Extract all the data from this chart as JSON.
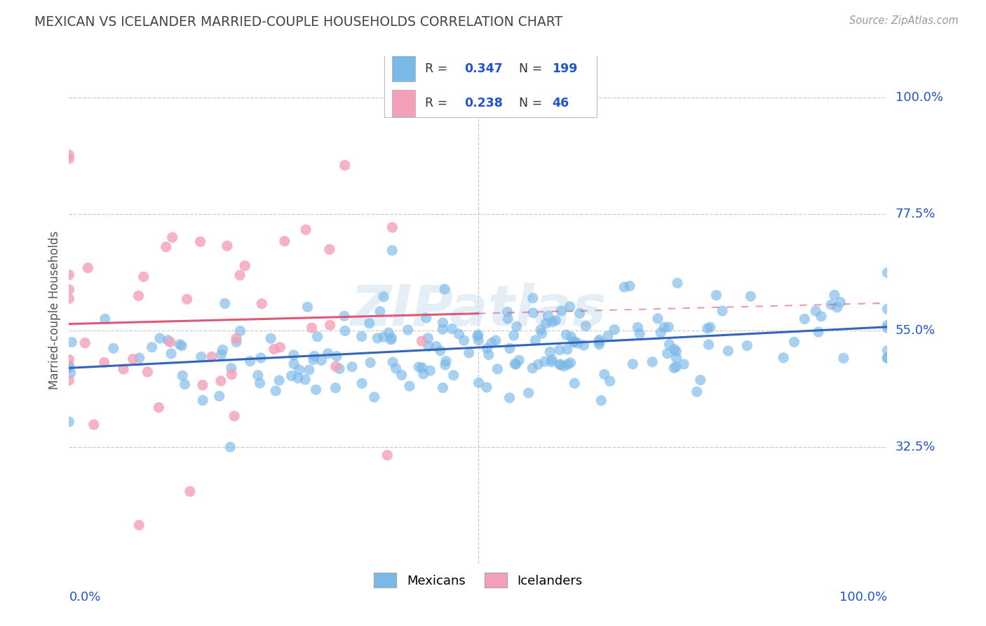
{
  "title": "MEXICAN VS ICELANDER MARRIED-COUPLE HOUSEHOLDS CORRELATION CHART",
  "source": "Source: ZipAtlas.com",
  "ylabel": "Married-couple Households",
  "watermark": "ZIPatlas",
  "ytick_labels": [
    "32.5%",
    "55.0%",
    "77.5%",
    "100.0%"
  ],
  "ytick_values": [
    0.325,
    0.55,
    0.775,
    1.0
  ],
  "mexican_color": "#7ab8e8",
  "icelander_color": "#f4a0b8",
  "mexican_line_color": "#3366bb",
  "icelander_line_color": "#e05878",
  "legend_R_mexican": "0.347",
  "legend_N_mexican": "199",
  "legend_R_icelander": "0.238",
  "legend_N_icelander": "46",
  "N_mexican": 199,
  "N_icelander": 46,
  "R_mexican": 0.347,
  "R_icelander": 0.238,
  "background_color": "#ffffff",
  "grid_color": "#cccccc",
  "title_color": "#444444",
  "source_color": "#999999",
  "label_color": "#2255cc",
  "legend_value_color": "#2255cc"
}
